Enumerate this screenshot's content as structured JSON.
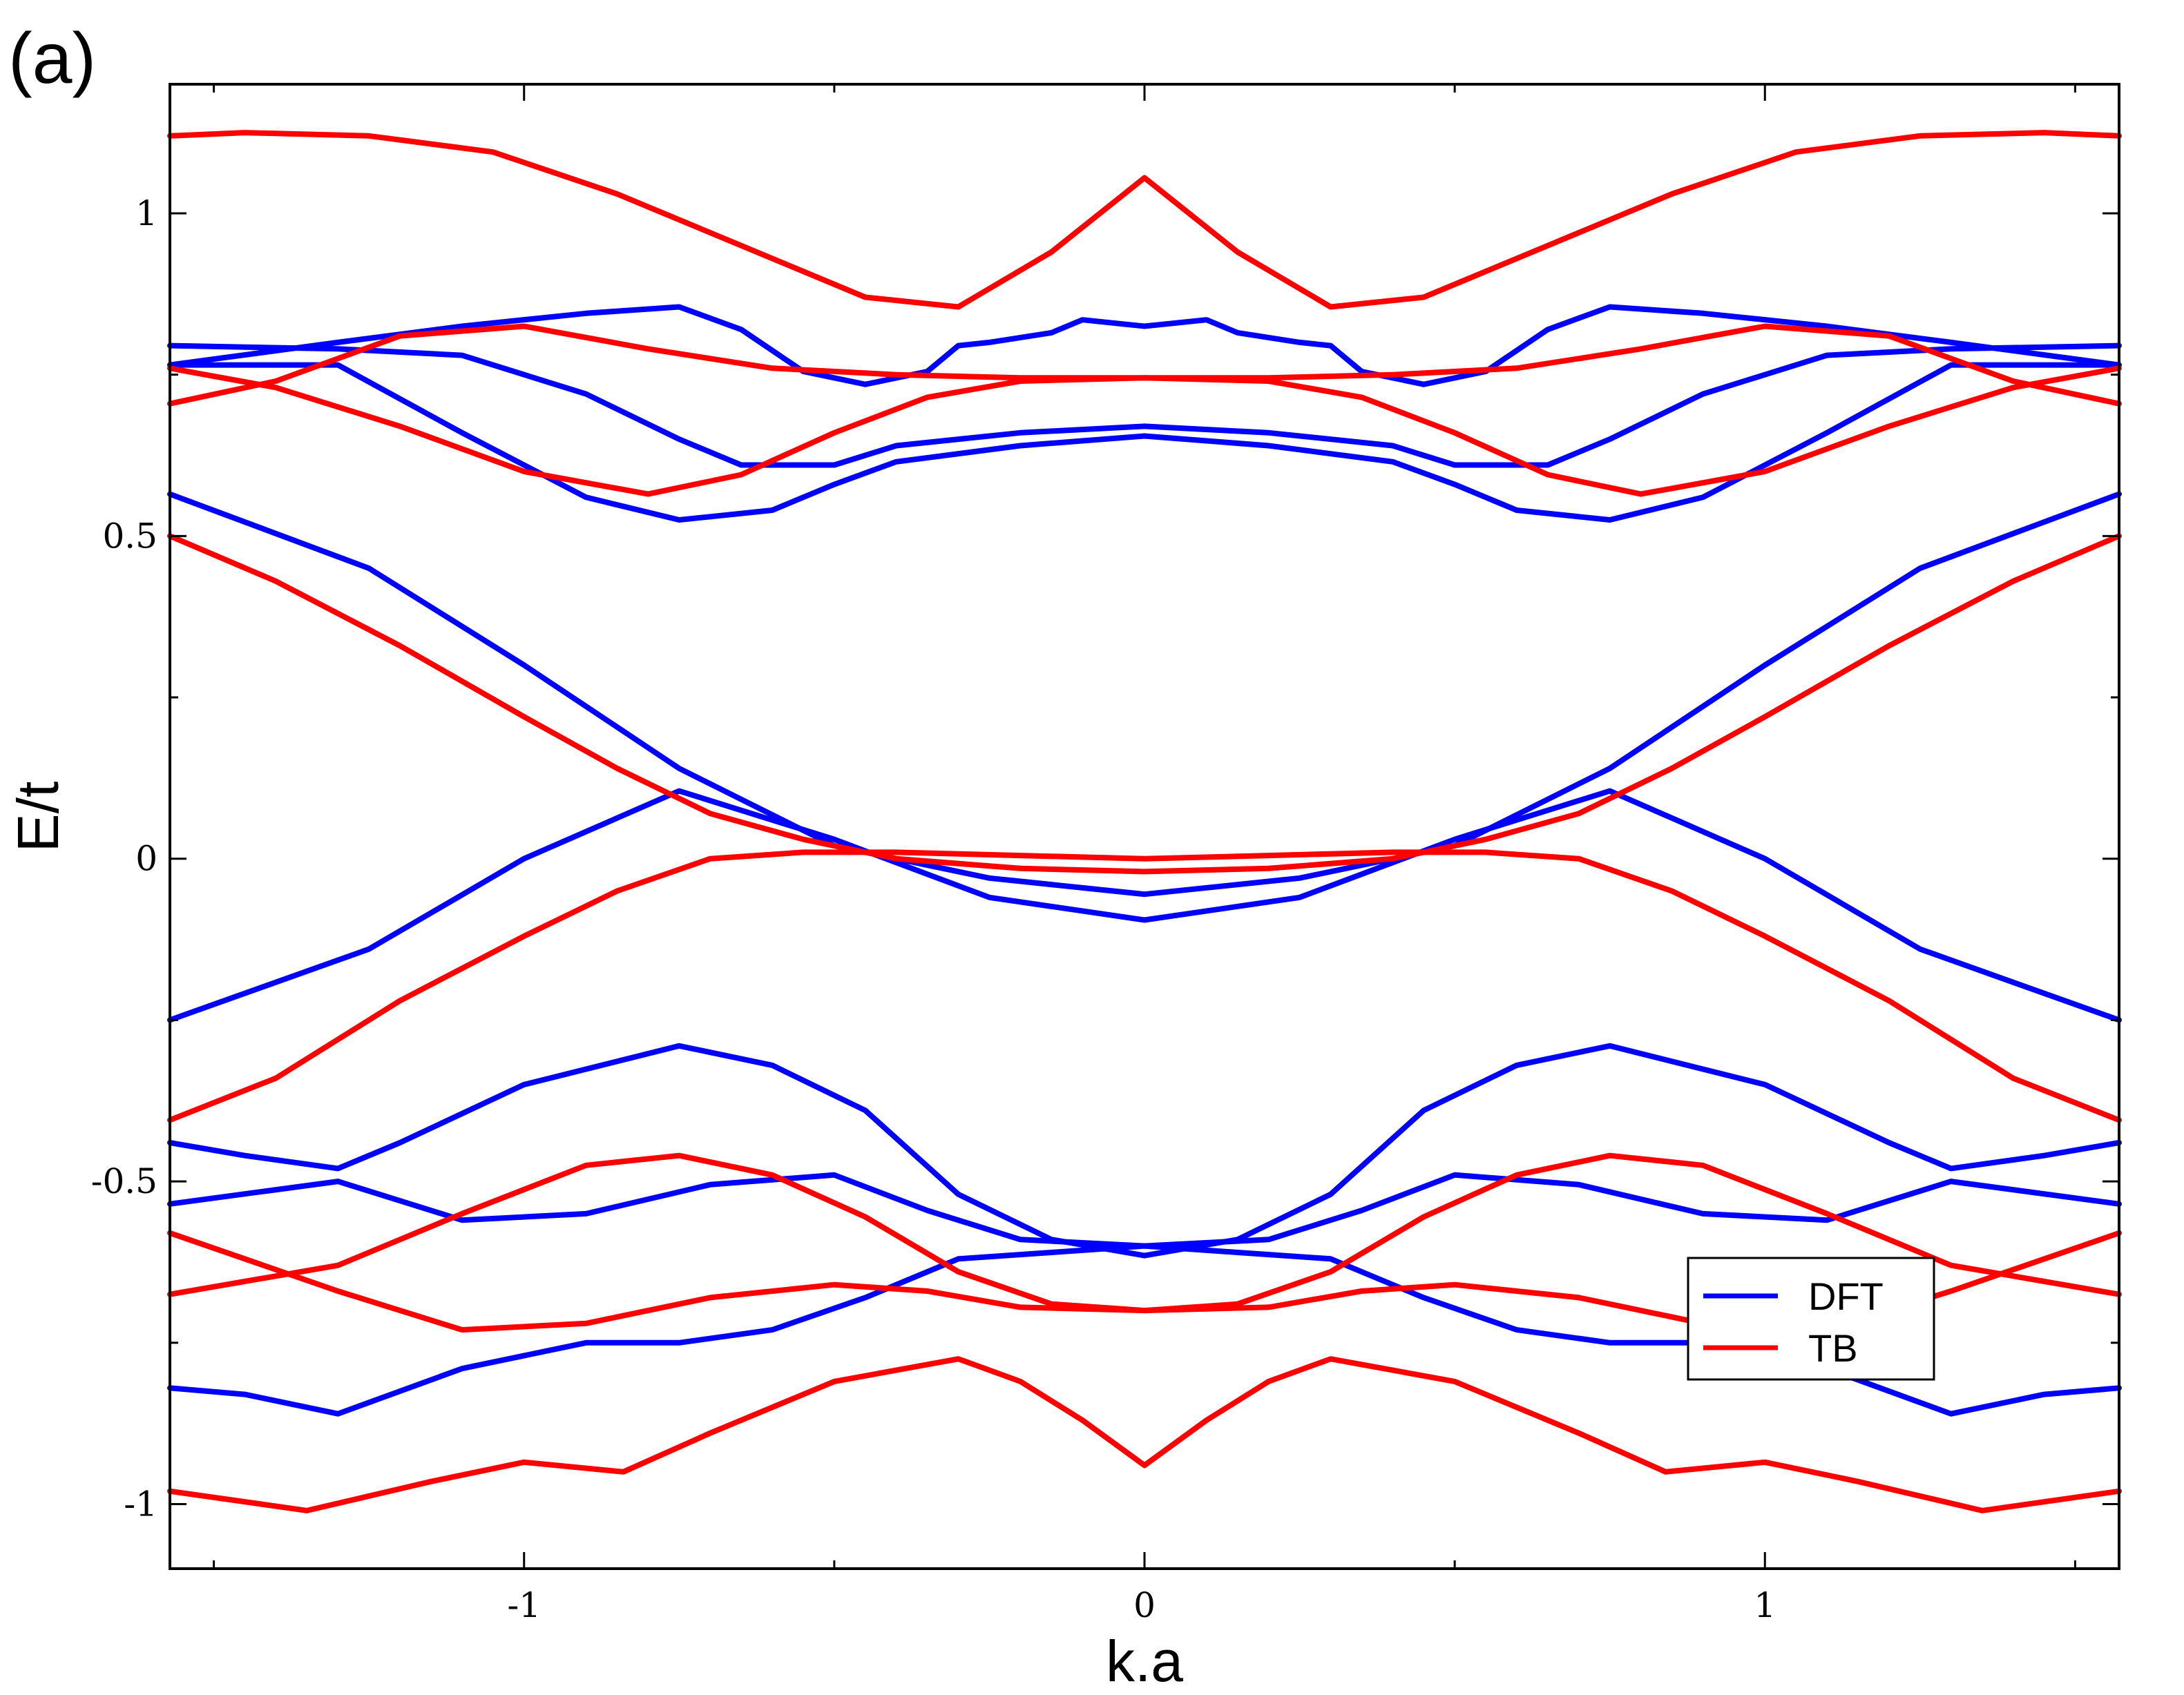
{
  "panel_label": "(a)",
  "chart_data": {
    "type": "line",
    "title": "",
    "xlabel": "k.a",
    "ylabel": "E/t",
    "xlim": [
      -1.5708,
      1.5708
    ],
    "ylim": [
      -1.1,
      1.2
    ],
    "xticks": [
      -1,
      0,
      1
    ],
    "xtick_labels": [
      "-1",
      "0",
      "1"
    ],
    "yticks": [
      -1,
      -0.5,
      0,
      0.5,
      1
    ],
    "ytick_labels": [
      "-1",
      "-0.5",
      "0",
      "0.5",
      "1"
    ],
    "grid": false,
    "legend_position": "lower-right",
    "colors": {
      "DFT": "#0000ff",
      "TB": "#ff0000"
    },
    "series": [
      {
        "name": "DFT",
        "color": "#0000ff",
        "bands": [
          {
            "x": [
              0,
              0.25,
              0.5,
              0.75,
              1.0,
              1.25,
              1.5708
            ],
            "y": [
              -0.095,
              -0.06,
              0.03,
              0.105,
              0.0,
              -0.14,
              -0.25
            ]
          },
          {
            "x": [
              0,
              0.25,
              0.5,
              0.75,
              1.0,
              1.25,
              1.5708
            ],
            "y": [
              -0.055,
              -0.03,
              0.02,
              0.14,
              0.3,
              0.45,
              0.565
            ]
          },
          {
            "x": [
              0,
              0.15,
              0.3,
              0.45,
              0.6,
              0.75,
              1.0,
              1.2,
              1.3,
              1.45,
              1.5708
            ],
            "y": [
              -0.615,
              -0.59,
              -0.52,
              -0.39,
              -0.32,
              -0.29,
              -0.35,
              -0.44,
              -0.48,
              -0.46,
              -0.44
            ]
          },
          {
            "x": [
              0,
              0.2,
              0.35,
              0.5,
              0.7,
              0.9,
              1.1,
              1.3,
              1.5708
            ],
            "y": [
              -0.6,
              -0.59,
              -0.545,
              -0.49,
              -0.505,
              -0.55,
              -0.56,
              -0.5,
              -0.535
            ]
          },
          {
            "x": [
              0,
              0.15,
              0.3,
              0.45,
              0.6,
              0.75,
              0.9,
              1.1,
              1.3,
              1.45,
              1.5708
            ],
            "y": [
              -0.6,
              -0.61,
              -0.62,
              -0.68,
              -0.73,
              -0.75,
              -0.75,
              -0.79,
              -0.86,
              -0.83,
              -0.82
            ]
          },
          {
            "x": [
              0,
              0.2,
              0.4,
              0.5,
              0.65,
              0.75,
              0.9,
              1.1,
              1.3,
              1.5708
            ],
            "y": [
              0.67,
              0.66,
              0.64,
              0.61,
              0.61,
              0.65,
              0.72,
              0.78,
              0.79,
              0.795
            ]
          },
          {
            "x": [
              0,
              0.2,
              0.4,
              0.5,
              0.6,
              0.75,
              0.9,
              1.1,
              1.3,
              1.5708
            ],
            "y": [
              0.655,
              0.64,
              0.615,
              0.58,
              0.54,
              0.525,
              0.56,
              0.66,
              0.765,
              0.765
            ]
          },
          {
            "x": [
              0,
              0.1,
              0.15,
              0.25,
              0.3,
              0.35,
              0.45,
              0.55,
              0.65,
              0.75,
              0.9,
              1.1,
              1.3,
              1.5708
            ],
            "y": [
              0.825,
              0.835,
              0.815,
              0.8,
              0.795,
              0.755,
              0.735,
              0.755,
              0.82,
              0.855,
              0.845,
              0.825,
              0.8,
              0.765
            ]
          }
        ]
      },
      {
        "name": "TB",
        "color": "#ff0000",
        "bands": [
          {
            "x": [
              0,
              0.2,
              0.4,
              0.55,
              0.7,
              0.85,
              1.0,
              1.2,
              1.4,
              1.5708
            ],
            "y": [
              0.0,
              0.005,
              0.01,
              0.01,
              0.0,
              -0.05,
              -0.12,
              -0.22,
              -0.34,
              -0.405
            ]
          },
          {
            "x": [
              0,
              0.2,
              0.4,
              0.55,
              0.7,
              0.85,
              1.0,
              1.2,
              1.4,
              1.5708
            ],
            "y": [
              -0.02,
              -0.015,
              0.0,
              0.03,
              0.07,
              0.14,
              0.22,
              0.33,
              0.43,
              0.5
            ]
          },
          {
            "x": [
              0,
              0.15,
              0.3,
              0.45,
              0.6,
              0.75,
              0.9,
              1.1,
              1.3,
              1.5708
            ],
            "y": [
              -0.7,
              -0.69,
              -0.64,
              -0.555,
              -0.49,
              -0.46,
              -0.475,
              -0.55,
              -0.63,
              -0.675
            ]
          },
          {
            "x": [
              0,
              0.2,
              0.35,
              0.5,
              0.7,
              0.9,
              1.1,
              1.3,
              1.5708
            ],
            "y": [
              -0.7,
              -0.695,
              -0.67,
              -0.66,
              -0.68,
              -0.72,
              -0.73,
              -0.67,
              -0.58
            ]
          },
          {
            "x": [
              0,
              0.1,
              0.2,
              0.3,
              0.5,
              0.7,
              0.84,
              1.0,
              1.15,
              1.35,
              1.5708
            ],
            "y": [
              -0.94,
              -0.87,
              -0.81,
              -0.775,
              -0.81,
              -0.89,
              -0.95,
              -0.935,
              -0.965,
              -1.01,
              -0.98
            ]
          },
          {
            "x": [
              0,
              0.2,
              0.4,
              0.6,
              0.8,
              1.0,
              1.2,
              1.4,
              1.5708
            ],
            "y": [
              0.745,
              0.745,
              0.75,
              0.76,
              0.79,
              0.825,
              0.81,
              0.74,
              0.705
            ]
          },
          {
            "x": [
              0,
              0.2,
              0.35,
              0.5,
              0.65,
              0.8,
              1.0,
              1.2,
              1.4,
              1.5708
            ],
            "y": [
              0.745,
              0.74,
              0.715,
              0.66,
              0.595,
              0.565,
              0.6,
              0.67,
              0.73,
              0.76
            ]
          },
          {
            "x": [
              0,
              0.15,
              0.3,
              0.45,
              0.65,
              0.85,
              1.05,
              1.25,
              1.45,
              1.5708
            ],
            "y": [
              1.055,
              0.94,
              0.855,
              0.87,
              0.95,
              1.03,
              1.095,
              1.12,
              1.125,
              1.12
            ]
          }
        ]
      }
    ]
  }
}
